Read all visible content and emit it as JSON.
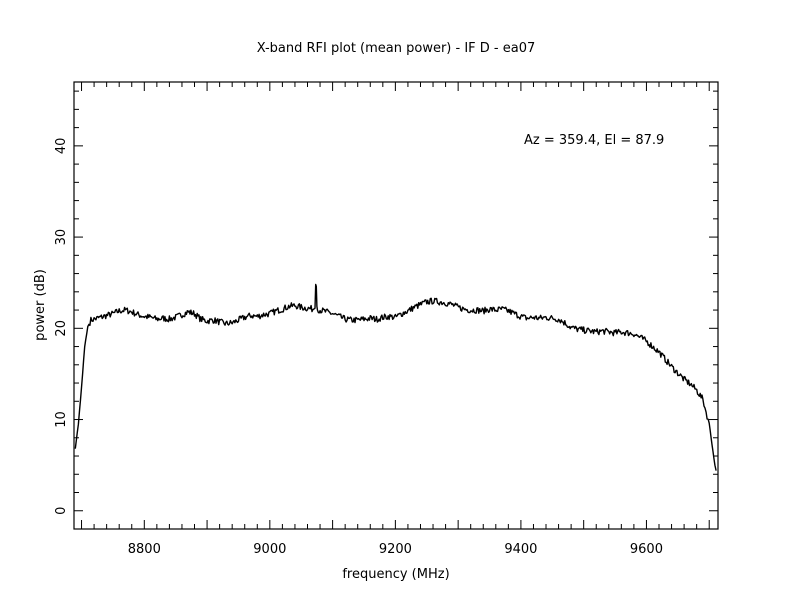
{
  "chart_data": {
    "type": "line",
    "title": "X-band RFI plot (mean power) - IF D - ea07",
    "xlabel": "frequency (MHz)",
    "ylabel": "power (dB)",
    "annotation": "Az = 359.4, El = 87.9",
    "xlim": [
      8688,
      9714
    ],
    "ylim": [
      -2,
      47
    ],
    "x_ticks": [
      8800,
      9000,
      9200,
      9400,
      9600
    ],
    "y_ticks": [
      0,
      10,
      20,
      30,
      40
    ],
    "x_tick_labels": [
      "8800",
      "9000",
      "9200",
      "9400",
      "9600"
    ],
    "y_tick_labels": [
      "0",
      "10",
      "20",
      "30",
      "40"
    ],
    "grid": false,
    "line_color": "#000000",
    "series": [
      {
        "x": [
          8690,
          8695,
          8700,
          8705,
          8710,
          8715,
          8720,
          8730,
          8740,
          8750,
          8760,
          8770,
          8780,
          8790,
          8800,
          8810,
          8820,
          8830,
          8840,
          8850,
          8860,
          8870,
          8880,
          8890,
          8900,
          8910,
          8920,
          8930,
          8940,
          8950,
          8960,
          8970,
          8980,
          8990,
          9000,
          9010,
          9020,
          9030,
          9040,
          9050,
          9060,
          9070,
          9072,
          9073,
          9074,
          9075,
          9076,
          9080,
          9090,
          9100,
          9110,
          9120,
          9130,
          9140,
          9150,
          9160,
          9170,
          9180,
          9190,
          9200,
          9210,
          9220,
          9230,
          9240,
          9250,
          9260,
          9270,
          9280,
          9290,
          9300,
          9310,
          9320,
          9330,
          9340,
          9350,
          9360,
          9370,
          9380,
          9390,
          9400,
          9410,
          9420,
          9430,
          9440,
          9450,
          9460,
          9470,
          9480,
          9490,
          9500,
          9510,
          9520,
          9530,
          9540,
          9550,
          9560,
          9570,
          9580,
          9590,
          9600,
          9610,
          9620,
          9630,
          9640,
          9650,
          9660,
          9670,
          9680,
          9690,
          9695,
          9700,
          9703,
          9706,
          9709,
          9711
        ],
        "y": [
          6.8,
          9.5,
          13.5,
          18.0,
          20.2,
          20.9,
          21.0,
          21.2,
          21.4,
          21.6,
          21.9,
          22.0,
          21.8,
          21.5,
          21.3,
          21.2,
          21.0,
          21.1,
          21.0,
          21.2,
          21.5,
          21.8,
          21.6,
          21.0,
          20.8,
          20.9,
          20.7,
          20.5,
          20.6,
          20.9,
          21.2,
          21.4,
          21.3,
          21.5,
          21.6,
          21.9,
          22.1,
          22.4,
          22.5,
          22.3,
          22.2,
          22.1,
          22.2,
          24.8,
          24.6,
          22.4,
          22.1,
          22.0,
          21.8,
          21.6,
          21.3,
          21.0,
          20.9,
          20.9,
          21.0,
          21.1,
          21.0,
          21.2,
          21.3,
          21.2,
          21.6,
          21.9,
          22.3,
          22.6,
          22.9,
          23.0,
          22.9,
          22.8,
          22.6,
          22.3,
          22.1,
          22.0,
          22.0,
          21.9,
          22.1,
          22.0,
          22.1,
          21.9,
          21.6,
          21.3,
          21.1,
          21.2,
          21.1,
          21.2,
          21.1,
          21.0,
          20.6,
          20.1,
          19.9,
          19.8,
          19.7,
          19.6,
          19.7,
          19.6,
          19.5,
          19.6,
          19.5,
          19.4,
          19.0,
          18.6,
          18.0,
          17.4,
          16.6,
          15.8,
          15.1,
          14.4,
          13.9,
          13.2,
          12.2,
          10.8,
          9.6,
          8.0,
          6.5,
          5.0,
          4.4
        ]
      }
    ]
  }
}
